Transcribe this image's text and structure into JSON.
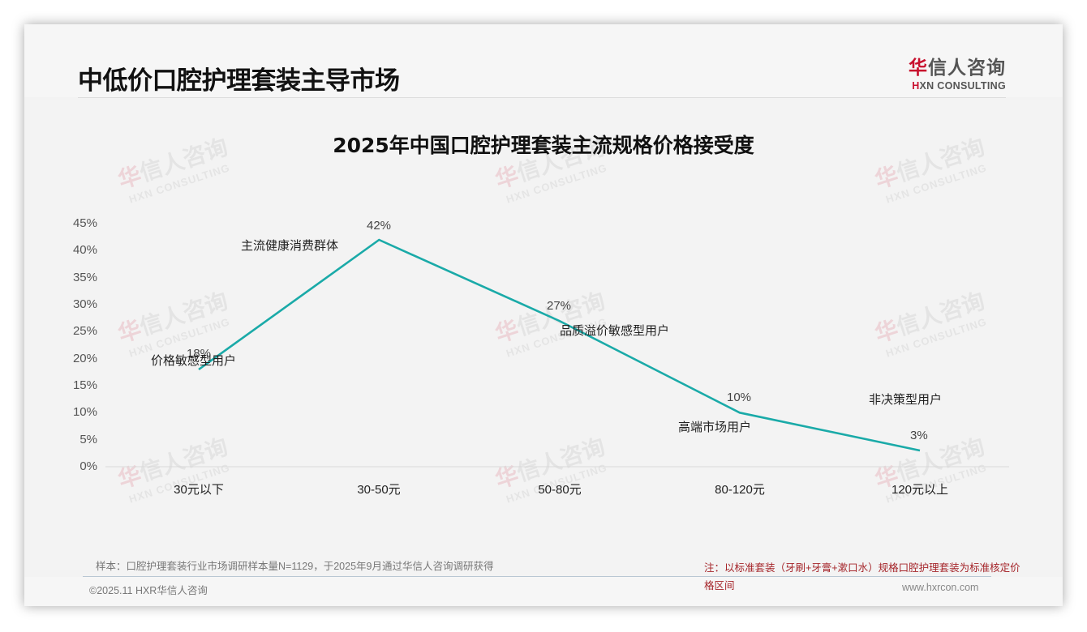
{
  "header": {
    "page_title": "中低价口腔护理套装主导市场",
    "logo": {
      "cn_accent": "华",
      "cn_rest": "信人咨询",
      "en_accent": "H",
      "en_rest": "XN CONSULTING"
    }
  },
  "chart_data": {
    "type": "line",
    "title": "2025年中国口腔护理套装主流规格价格接受度",
    "categories": [
      "30元以下",
      "30-50元",
      "50-80元",
      "80-120元",
      "120元以上"
    ],
    "values": [
      18,
      42,
      27,
      10,
      3
    ],
    "value_labels": [
      "18%",
      "42%",
      "27%",
      "10%",
      "3%"
    ],
    "segment_labels": [
      "价格敏感型用户",
      "主流健康消费群体",
      "品质溢价敏感型用户",
      "高端市场用户",
      "非决策型用户"
    ],
    "xlabel": "",
    "ylabel": "",
    "ylim": [
      0,
      45
    ],
    "y_ticks": [
      "0%",
      "5%",
      "10%",
      "15%",
      "20%",
      "25%",
      "30%",
      "35%",
      "40%",
      "45%"
    ],
    "grid": false,
    "legend": "none",
    "line_color": "#1aaaa8"
  },
  "watermark": {
    "cn_accent": "华",
    "cn_rest": "信人咨询",
    "en": "HXN CONSULTING"
  },
  "footer": {
    "source_note": "样本：口腔护理套装行业市场调研样本量N=1129，于2025年9月通过华信人咨询调研获得",
    "footnote": "注：以标准套装（牙刷+牙膏+漱口水）规格口腔护理套装为标准核定价格区间",
    "copyright": "©2025.11 HXR华信人咨询",
    "website": "www.hxrcon.com"
  }
}
